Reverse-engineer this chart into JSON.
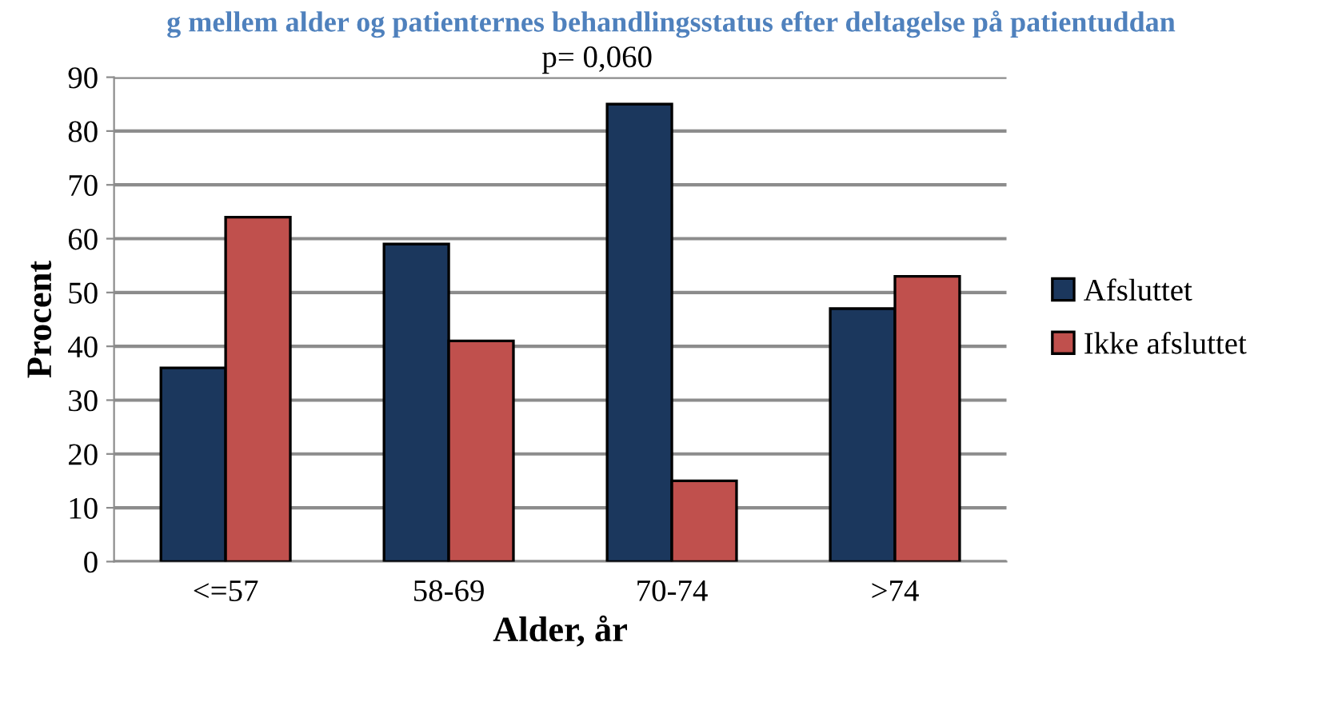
{
  "chart_data": {
    "type": "bar",
    "title": "g mellem alder og patienternes behandlingsstatus efter deltagelse på patientuddan",
    "annotations": [
      "p= 0,060"
    ],
    "xlabel": "Alder, år",
    "ylabel": "Procent",
    "categories": [
      "<=57",
      "58-69",
      "70-74",
      ">74"
    ],
    "series": [
      {
        "name": "Afsluttet",
        "color": "#1b375d",
        "values": [
          36,
          59,
          85,
          47
        ]
      },
      {
        "name": "Ikke afsluttet",
        "color": "#c0504d",
        "values": [
          64,
          41,
          15,
          53
        ]
      }
    ],
    "ylim": [
      0,
      90
    ],
    "yticks": [
      0,
      10,
      20,
      30,
      40,
      50,
      60,
      70,
      80,
      90
    ],
    "grid": "y",
    "legend": "right"
  }
}
